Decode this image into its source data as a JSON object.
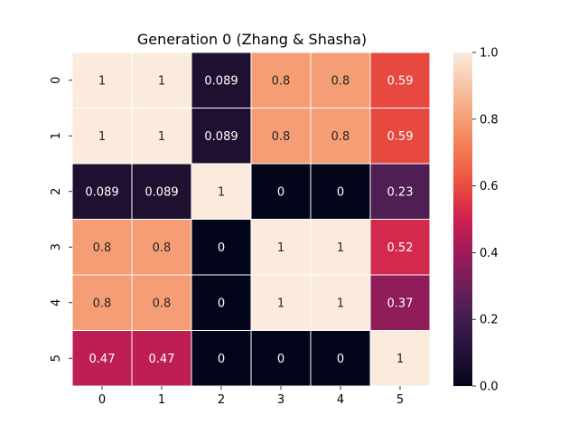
{
  "chart_data": {
    "type": "heatmap",
    "title": "Generation 0 (Zhang & Shasha)",
    "xlabel": "",
    "ylabel": "",
    "x_categories": [
      "0",
      "1",
      "2",
      "3",
      "4",
      "5"
    ],
    "y_categories": [
      "0",
      "1",
      "2",
      "3",
      "4",
      "5"
    ],
    "values": [
      [
        1,
        1,
        0.089,
        0.8,
        0.8,
        0.59
      ],
      [
        1,
        1,
        0.089,
        0.8,
        0.8,
        0.59
      ],
      [
        0.089,
        0.089,
        1,
        0,
        0,
        0.23
      ],
      [
        0.8,
        0.8,
        0,
        1,
        1,
        0.52
      ],
      [
        0.8,
        0.8,
        0,
        1,
        1,
        0.37
      ],
      [
        0.47,
        0.47,
        0,
        0,
        0,
        1
      ]
    ],
    "cell_labels": [
      [
        "1",
        "1",
        "0.089",
        "0.8",
        "0.8",
        "0.59"
      ],
      [
        "1",
        "1",
        "0.089",
        "0.8",
        "0.8",
        "0.59"
      ],
      [
        "0.089",
        "0.089",
        "1",
        "0",
        "0",
        "0.23"
      ],
      [
        "0.8",
        "0.8",
        "0",
        "1",
        "1",
        "0.52"
      ],
      [
        "0.8",
        "0.8",
        "0",
        "1",
        "1",
        "0.37"
      ],
      [
        "0.47",
        "0.47",
        "0",
        "0",
        "0",
        "1"
      ]
    ],
    "colorbar": {
      "range": [
        0.0,
        1.0
      ],
      "ticks": [
        0.0,
        0.2,
        0.4,
        0.6,
        0.8,
        1.0
      ],
      "tick_labels": [
        "0.0",
        "0.2",
        "0.4",
        "0.6",
        "0.8",
        "1.0"
      ]
    },
    "colormap": "rocket",
    "annotated": true,
    "grid": false
  }
}
